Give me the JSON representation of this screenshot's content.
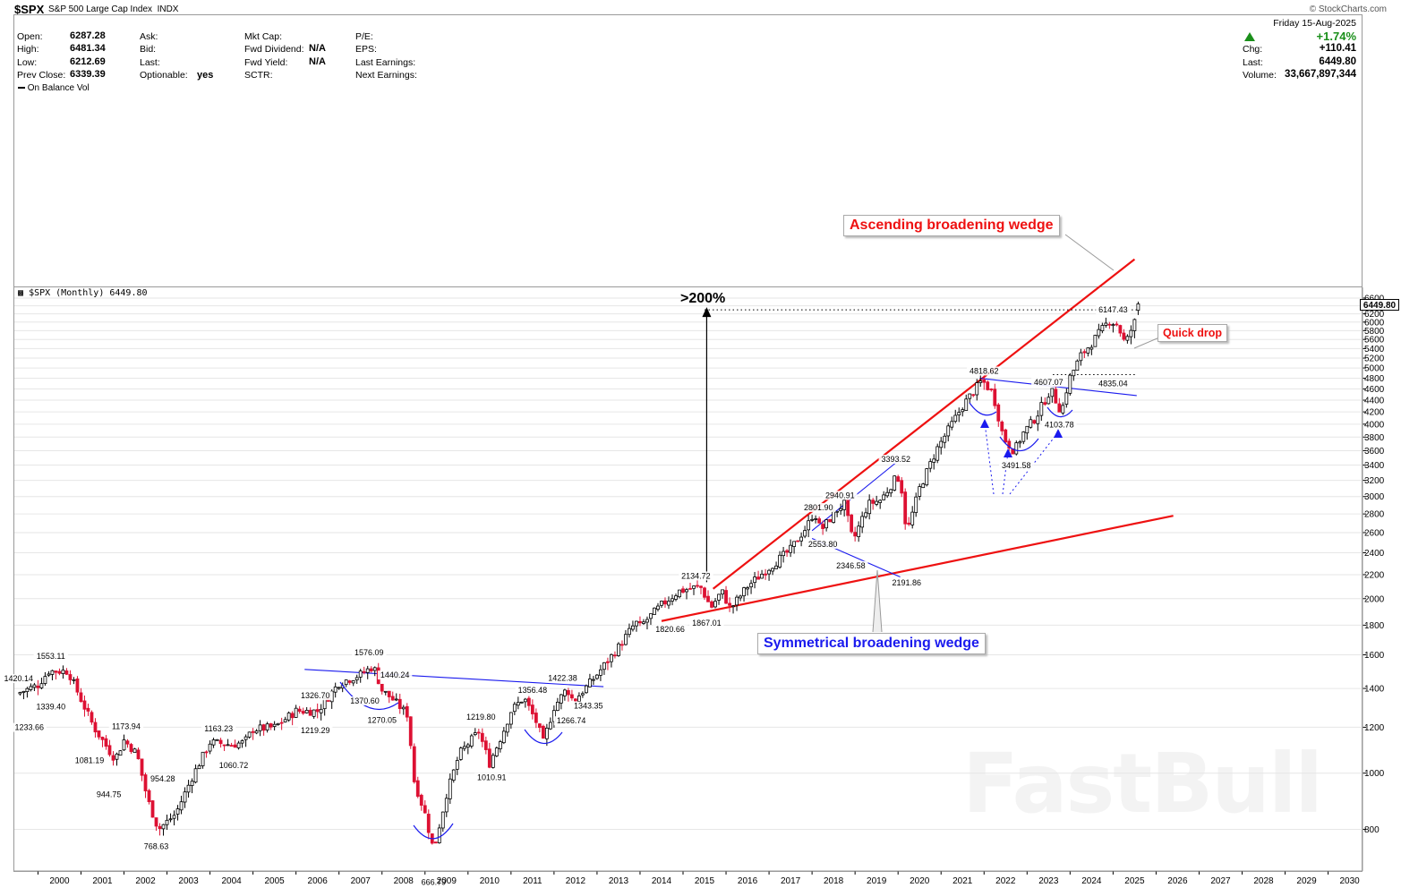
{
  "header": {
    "symbol": "$SPX",
    "name": "S&P 500 Large Cap Index",
    "exchange": "INDX",
    "source": "© StockCharts.com",
    "date": "Friday   15-Aug-2025"
  },
  "quote_left": [
    {
      "label": "Open:",
      "value": "6287.28"
    },
    {
      "label": "High:",
      "value": "6481.34"
    },
    {
      "label": "Low:",
      "value": "6212.69"
    },
    {
      "label": "Prev Close:",
      "value": "6339.39"
    }
  ],
  "quote_mid": [
    {
      "label": "Ask:",
      "value": ""
    },
    {
      "label": "Bid:",
      "value": ""
    },
    {
      "label": "Last:",
      "value": ""
    },
    {
      "label": "Optionable:",
      "value": "yes"
    }
  ],
  "quote_mid2": [
    {
      "label": "Mkt Cap:",
      "value": ""
    },
    {
      "label": "Fwd Dividend:",
      "value": "N/A"
    },
    {
      "label": "Fwd Yield:",
      "value": "N/A"
    },
    {
      "label": "SCTR:",
      "value": ""
    }
  ],
  "quote_right_labels": [
    {
      "label": "P/E:"
    },
    {
      "label": "EPS:"
    },
    {
      "label": "Last Earnings:"
    },
    {
      "label": "Next Earnings:"
    }
  ],
  "quote_far": [
    {
      "label": "",
      "value": "+1.74%"
    },
    {
      "label": "Chg:",
      "value": "+110.41"
    },
    {
      "label": "Last:",
      "value": "6449.80"
    },
    {
      "label": "Volume:",
      "value": "33,667,897,344"
    }
  ],
  "colors": {
    "up": "#ffffff",
    "down": "#dd1133",
    "red_line": "#ee1111",
    "blue_line": "#1a1aee",
    "grid": "#e6e6e6",
    "up_arrow": "#1a8f1a"
  },
  "indicator": {
    "label": "On Balance Vol"
  },
  "price_panel": {
    "label": "$SPX (Monthly) 6449.80",
    "last_badge": "6449.80"
  },
  "annotations": {
    "ascending_wedge": "Ascending broadening wedge",
    "symmetrical_wedge": "Symmetrical broadening wedge",
    "quick_drop": "Quick drop",
    "gain": ">200%"
  },
  "watermark": "FastBull",
  "chart_data": {
    "type": "candlestick",
    "title": "$SPX (Monthly) 6449.80",
    "scale": "log",
    "ylim": [
      700,
      6600
    ],
    "xlim": [
      1999.45,
      2030.8
    ],
    "yticks": [
      800,
      1000,
      1200,
      1400,
      1600,
      1800,
      2000,
      2200,
      2400,
      2600,
      2800,
      3000,
      3200,
      3400,
      3600,
      3800,
      4000,
      4200,
      4400,
      4600,
      4800,
      5000,
      5200,
      5400,
      5600,
      5800,
      6000,
      6200,
      6400,
      6600
    ],
    "xticks": [
      "2000",
      "2001",
      "2002",
      "2003",
      "2004",
      "2005",
      "2006",
      "2007",
      "2008",
      "2009",
      "2010",
      "2011",
      "2012",
      "2013",
      "2014",
      "2015",
      "2016",
      "2017",
      "2018",
      "2019",
      "2020",
      "2021",
      "2022",
      "2023",
      "2024",
      "2025",
      "2026",
      "2027",
      "2028",
      "2029",
      "2030"
    ],
    "path_anchors": [
      [
        1999.5,
        1370
      ],
      [
        2000.0,
        1420
      ],
      [
        2000.25,
        1500
      ],
      [
        2000.7,
        1500
      ],
      [
        2001.0,
        1340
      ],
      [
        2001.3,
        1200
      ],
      [
        2001.7,
        1081
      ],
      [
        2001.8,
        1060
      ],
      [
        2002.0,
        1140
      ],
      [
        2002.3,
        1080
      ],
      [
        2002.55,
        900
      ],
      [
        2002.8,
        800
      ],
      [
        2003.2,
        850
      ],
      [
        2003.6,
        990
      ],
      [
        2004.0,
        1130
      ],
      [
        2004.5,
        1120
      ],
      [
        2004.8,
        1130
      ],
      [
        2005.0,
        1190
      ],
      [
        2005.5,
        1200
      ],
      [
        2006.0,
        1280
      ],
      [
        2006.5,
        1280
      ],
      [
        2007.0,
        1430
      ],
      [
        2007.5,
        1480
      ],
      [
        2007.8,
        1530
      ],
      [
        2008.0,
        1390
      ],
      [
        2008.25,
        1340
      ],
      [
        2008.6,
        1260
      ],
      [
        2008.75,
        970
      ],
      [
        2009.0,
        850
      ],
      [
        2009.2,
        735
      ],
      [
        2009.5,
        920
      ],
      [
        2009.8,
        1080
      ],
      [
        2010.25,
        1180
      ],
      [
        2010.5,
        1040
      ],
      [
        2010.8,
        1170
      ],
      [
        2011.0,
        1280
      ],
      [
        2011.3,
        1350
      ],
      [
        2011.6,
        1220
      ],
      [
        2011.75,
        1130
      ],
      [
        2012.0,
        1300
      ],
      [
        2012.3,
        1400
      ],
      [
        2012.45,
        1330
      ],
      [
        2012.8,
        1420
      ],
      [
        2013.0,
        1480
      ],
      [
        2013.5,
        1650
      ],
      [
        2013.9,
        1820
      ],
      [
        2014.0,
        1790
      ],
      [
        2014.5,
        1950
      ],
      [
        2014.9,
        2060
      ],
      [
        2015.4,
        2100
      ],
      [
        2015.65,
        1930
      ],
      [
        2015.9,
        2060
      ],
      [
        2016.1,
        1920
      ],
      [
        2016.5,
        2100
      ],
      [
        2016.9,
        2230
      ],
      [
        2017.5,
        2430
      ],
      [
        2017.9,
        2680
      ],
      [
        2018.05,
        2830
      ],
      [
        2018.2,
        2620
      ],
      [
        2018.6,
        2860
      ],
      [
        2018.75,
        2910
      ],
      [
        2018.95,
        2510
      ],
      [
        2019.3,
        2910
      ],
      [
        2019.6,
        2960
      ],
      [
        2019.95,
        3230
      ],
      [
        2020.05,
        3230
      ],
      [
        2020.2,
        2590
      ],
      [
        2020.5,
        3100
      ],
      [
        2020.9,
        3620
      ],
      [
        2021.5,
        4300
      ],
      [
        2021.95,
        4760
      ],
      [
        2022.2,
        4530
      ],
      [
        2022.45,
        3790
      ],
      [
        2022.7,
        3590
      ],
      [
        2022.9,
        3850
      ],
      [
        2023.2,
        4110
      ],
      [
        2023.55,
        4590
      ],
      [
        2023.8,
        4190
      ],
      [
        2023.97,
        4770
      ],
      [
        2024.25,
        5250
      ],
      [
        2024.5,
        5520
      ],
      [
        2024.9,
        6030
      ],
      [
        2025.1,
        5950
      ],
      [
        2025.25,
        5570
      ],
      [
        2025.33,
        5600
      ],
      [
        2025.45,
        5900
      ],
      [
        2025.6,
        6200
      ],
      [
        2025.62,
        6449.8
      ]
    ],
    "last_candle": {
      "open": 6287.28,
      "high": 6481.34,
      "low": 6212.69,
      "close": 6449.8
    },
    "point_labels": [
      {
        "t": 1999.55,
        "v": 1420.14,
        "text": "1420.14",
        "pos": "above"
      },
      {
        "t": 1999.8,
        "v": 1233.66,
        "text": "1233.66",
        "pos": "below"
      },
      {
        "t": 2000.3,
        "v": 1553.11,
        "text": "1553.11",
        "pos": "above"
      },
      {
        "t": 2000.3,
        "v": 1339.4,
        "text": "1339.40",
        "pos": "below"
      },
      {
        "t": 2001.2,
        "v": 1081.19,
        "text": "1081.19",
        "pos": "below"
      },
      {
        "t": 2002.05,
        "v": 1173.94,
        "text": "1173.94",
        "pos": "above"
      },
      {
        "t": 2001.65,
        "v": 944.75,
        "text": "944.75",
        "pos": "below"
      },
      {
        "t": 2002.9,
        "v": 954.28,
        "text": "954.28",
        "pos": "above"
      },
      {
        "t": 2002.75,
        "v": 768.63,
        "text": "768.63",
        "pos": "below"
      },
      {
        "t": 2004.2,
        "v": 1163.23,
        "text": "1163.23",
        "pos": "above"
      },
      {
        "t": 2004.55,
        "v": 1060.72,
        "text": "1060.72",
        "pos": "below"
      },
      {
        "t": 2006.45,
        "v": 1326.7,
        "text": "1326.70",
        "pos": "above"
      },
      {
        "t": 2006.45,
        "v": 1219.29,
        "text": "1219.29",
        "pos": "below"
      },
      {
        "t": 2007.7,
        "v": 1576.09,
        "text": "1576.09",
        "pos": "above"
      },
      {
        "t": 2007.6,
        "v": 1370.6,
        "text": "1370.60",
        "pos": "below"
      },
      {
        "t": 2008.3,
        "v": 1440.24,
        "text": "1440.24",
        "pos": "above"
      },
      {
        "t": 2008.0,
        "v": 1270.05,
        "text": "1270.05",
        "pos": "below"
      },
      {
        "t": 2009.2,
        "v": 666.79,
        "text": "666.79",
        "pos": "below"
      },
      {
        "t": 2010.3,
        "v": 1219.8,
        "text": "1219.80",
        "pos": "above"
      },
      {
        "t": 2010.55,
        "v": 1010.91,
        "text": "1010.91",
        "pos": "below"
      },
      {
        "t": 2011.5,
        "v": 1356.48,
        "text": "1356.48",
        "pos": "above"
      },
      {
        "t": 2012.4,
        "v": 1266.74,
        "text": "1266.74",
        "pos": "below"
      },
      {
        "t": 2012.2,
        "v": 1422.38,
        "text": "1422.38",
        "pos": "above"
      },
      {
        "t": 2012.8,
        "v": 1343.35,
        "text": "1343.35",
        "pos": "below"
      },
      {
        "t": 2015.3,
        "v": 2134.72,
        "text": "2134.72",
        "pos": "above"
      },
      {
        "t": 2014.7,
        "v": 1820.66,
        "text": "1820.66",
        "pos": "below"
      },
      {
        "t": 2015.55,
        "v": 1867.01,
        "text": "1867.01",
        "pos": "below"
      },
      {
        "t": 2018.15,
        "v": 2801.9,
        "text": "2801.90",
        "pos": "above"
      },
      {
        "t": 2018.25,
        "v": 2553.8,
        "text": "2553.80",
        "pos": "below"
      },
      {
        "t": 2018.65,
        "v": 2940.91,
        "text": "2940.91",
        "pos": "above"
      },
      {
        "t": 2018.9,
        "v": 2346.58,
        "text": "2346.58",
        "pos": "below"
      },
      {
        "t": 2019.95,
        "v": 3393.52,
        "text": "3393.52",
        "pos": "above"
      },
      {
        "t": 2020.2,
        "v": 2191.86,
        "text": "2191.86",
        "pos": "below"
      },
      {
        "t": 2022.0,
        "v": 4818.62,
        "text": "4818.62",
        "pos": "above"
      },
      {
        "t": 2022.75,
        "v": 3491.58,
        "text": "3491.58",
        "pos": "below"
      },
      {
        "t": 2023.5,
        "v": 4607.07,
        "text": "4607.07",
        "pos": "above"
      },
      {
        "t": 2023.75,
        "v": 4103.78,
        "text": "4103.78",
        "pos": "below"
      },
      {
        "t": 2025.0,
        "v": 6147.43,
        "text": "6147.43",
        "pos": "above"
      },
      {
        "t": 2025.0,
        "v": 4835.04,
        "text": "4835.04",
        "pos": "below"
      }
    ],
    "trendlines": [
      {
        "name": "asc-wedge-upper",
        "color": "red",
        "from": [
          2015.7,
          2080
        ],
        "to": [
          2025.5,
          7700
        ]
      },
      {
        "name": "asc-wedge-lower",
        "color": "red",
        "from": [
          2014.5,
          1830
        ],
        "to": [
          2026.4,
          2780
        ]
      },
      {
        "name": "neckline-2000-2015",
        "color": "blue",
        "from": [
          2006.2,
          1510
        ],
        "to": [
          2013.15,
          1410
        ]
      },
      {
        "name": "sym-wedge-upper",
        "color": "blue",
        "from": [
          2018.0,
          2620
        ],
        "to": [
          2020.05,
          3480
        ]
      },
      {
        "name": "sym-wedge-lower",
        "color": "blue",
        "from": [
          2018.0,
          2540
        ],
        "to": [
          2020.05,
          2180
        ]
      },
      {
        "name": "neckline-2022",
        "color": "blue",
        "from": [
          2021.9,
          4800
        ],
        "to": [
          2025.55,
          4480
        ]
      }
    ],
    "levels": [
      {
        "name": "top-2025",
        "v": 6300,
        "from": 2015.5,
        "to": 2025.55
      },
      {
        "name": "quick-drop-low",
        "v": 4870,
        "from": 2023.6,
        "to": 2025.55
      }
    ],
    "gain_arrow": {
      "t": 2015.55,
      "from": 2134.72,
      "to": 6300
    }
  }
}
